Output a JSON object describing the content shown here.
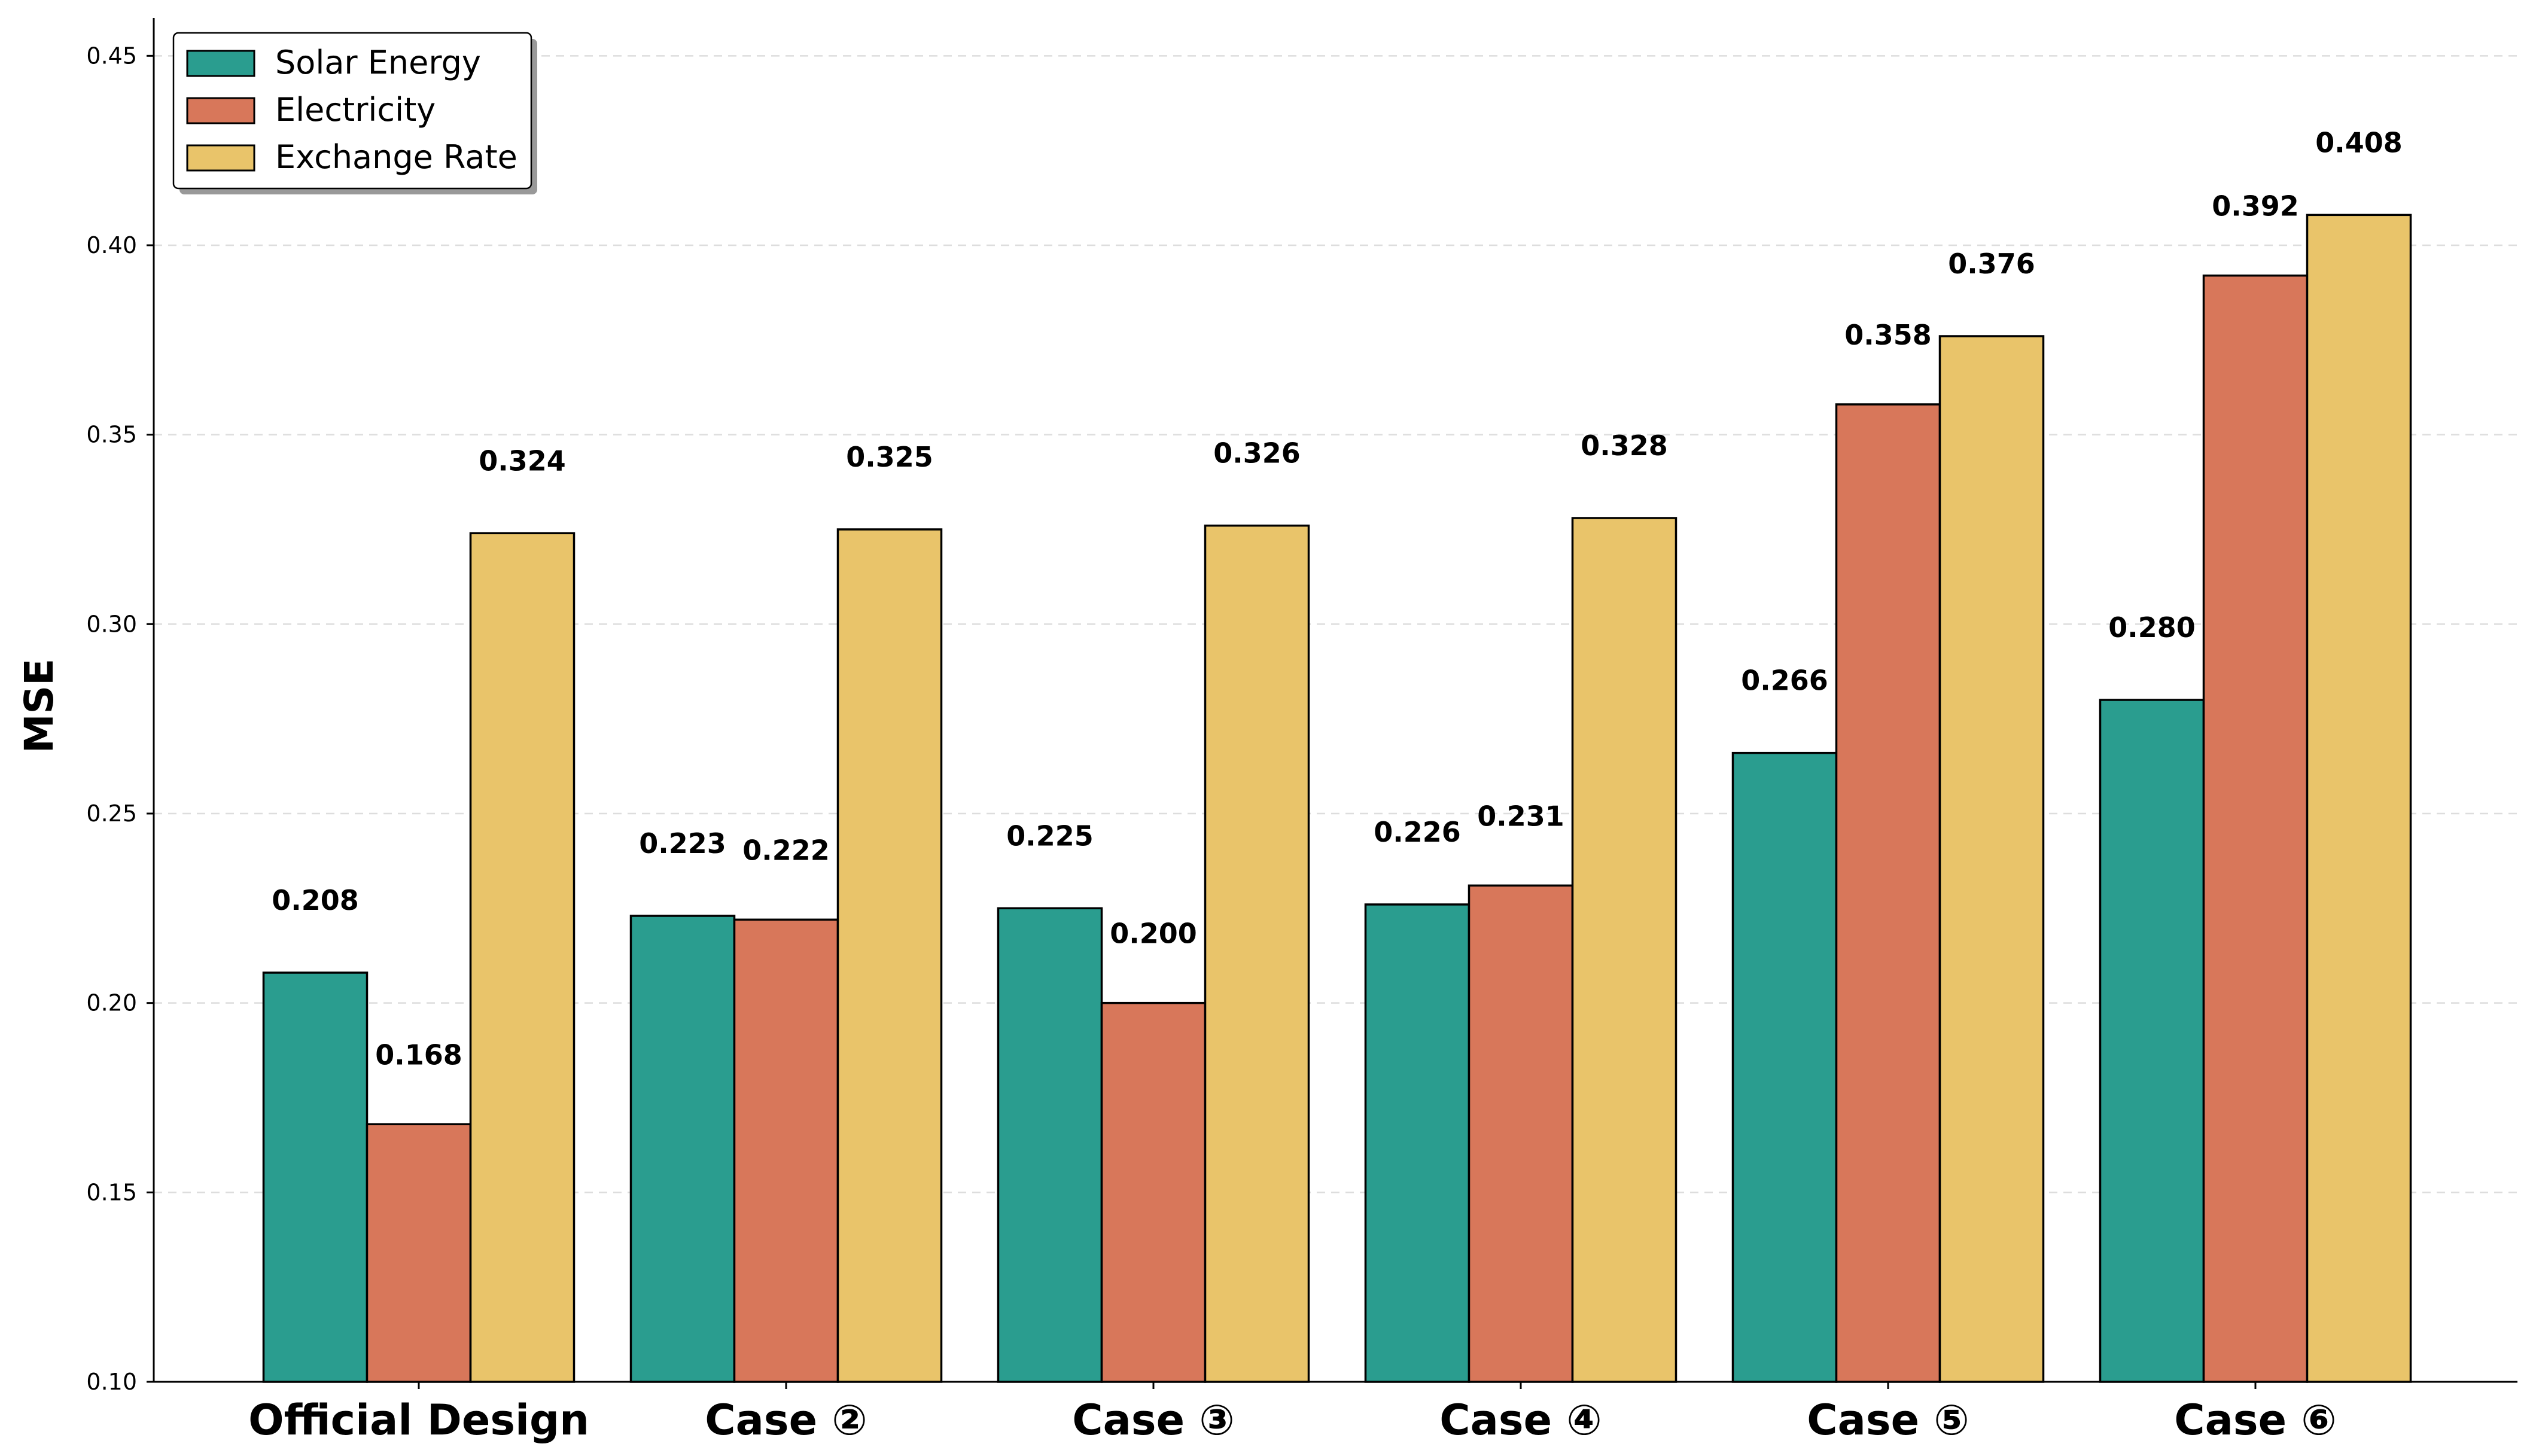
{
  "chart_data": {
    "type": "bar",
    "categories": [
      "Official Design",
      "Case ②",
      "Case ③",
      "Case ④",
      "Case ⑤",
      "Case ⑥"
    ],
    "series": [
      {
        "name": "Solar Energy",
        "color": "#2a9d8f",
        "values": [
          0.208,
          0.223,
          0.225,
          0.226,
          0.266,
          0.28
        ]
      },
      {
        "name": "Electricity",
        "color": "#d8775a",
        "values": [
          0.168,
          0.222,
          0.2,
          0.231,
          0.358,
          0.392
        ]
      },
      {
        "name": "Exchange Rate",
        "color": "#e9c46a",
        "values": [
          0.324,
          0.325,
          0.326,
          0.328,
          0.376,
          0.408
        ]
      }
    ],
    "value_labels": [
      [
        "0.208",
        "0.223",
        "0.225",
        "0.226",
        "0.266",
        "0.280"
      ],
      [
        "0.168",
        "0.222",
        "0.200",
        "0.231",
        "0.358",
        "0.392"
      ],
      [
        "0.324",
        "0.325",
        "0.326",
        "0.328",
        "0.376",
        "0.408"
      ]
    ],
    "xlabel": "",
    "ylabel": "MSE",
    "ylim": [
      0.1,
      0.46
    ],
    "yticks": [
      0.1,
      0.15,
      0.2,
      0.25,
      0.3,
      0.35,
      0.4,
      0.45
    ],
    "ytick_labels": [
      "0.10",
      "0.15",
      "0.20",
      "0.25",
      "0.30",
      "0.35",
      "0.40",
      "0.45"
    ],
    "grid": "horizontal dashed",
    "legend_position": "top-left"
  }
}
